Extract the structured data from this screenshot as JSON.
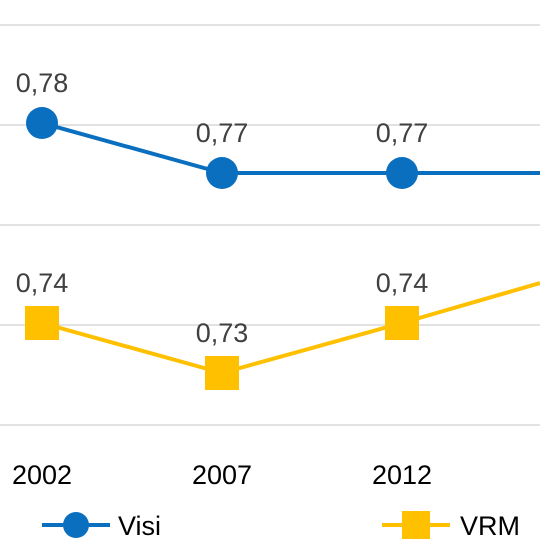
{
  "chart_data": {
    "type": "line",
    "categories": [
      "2002",
      "2007",
      "2012"
    ],
    "series": [
      {
        "name": "Visi",
        "values": [
          0.78,
          0.77,
          0.77
        ],
        "labels": [
          "0,78",
          "0,77",
          "0,77"
        ],
        "color": "#0b6fbf",
        "marker": "circle"
      },
      {
        "name": "VRM",
        "values": [
          0.74,
          0.73,
          0.74
        ],
        "labels": [
          "0,74",
          "0,73",
          "0,74"
        ],
        "color": "#ffc000",
        "marker": "square"
      }
    ],
    "grid": true,
    "legend_position": "bottom"
  }
}
